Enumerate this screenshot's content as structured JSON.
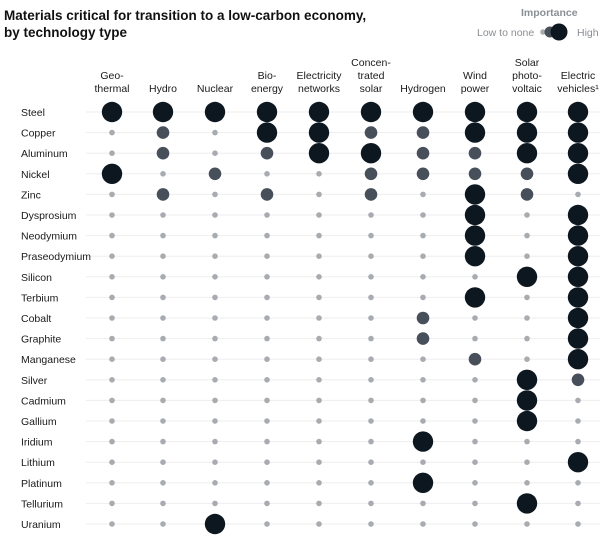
{
  "title_lines": [
    "Materials critical for transition to a low-carbon economy,",
    "by technology type"
  ],
  "legend": {
    "title": "Importance",
    "low_label": "Low to none",
    "high_label": "High"
  },
  "colors": {
    "high": "#0d1720",
    "medium": "#47505a",
    "low": "#a8acb0",
    "gridline": "#eeeeee"
  },
  "chart_data": {
    "type": "dot-matrix",
    "title": "Materials critical for transition to a low-carbon economy, by technology type",
    "scale": {
      "levels": [
        1,
        2,
        3
      ],
      "1": "Low to none",
      "3": "High"
    },
    "columns": [
      {
        "key": "geothermal",
        "lines": [
          "Geo-",
          "thermal"
        ]
      },
      {
        "key": "hydro",
        "lines": [
          "Hydro"
        ]
      },
      {
        "key": "nuclear",
        "lines": [
          "Nuclear"
        ]
      },
      {
        "key": "bioenergy",
        "lines": [
          "Bio-",
          "energy"
        ]
      },
      {
        "key": "electricity_networks",
        "lines": [
          "Electricity",
          "networks"
        ]
      },
      {
        "key": "concentrated_solar",
        "lines": [
          "Concen-",
          "trated",
          "solar"
        ]
      },
      {
        "key": "hydrogen",
        "lines": [
          "Hydrogen"
        ]
      },
      {
        "key": "wind_power",
        "lines": [
          "Wind",
          "power"
        ]
      },
      {
        "key": "solar_photovoltaic",
        "lines": [
          "Solar",
          "photo-",
          "voltaic"
        ]
      },
      {
        "key": "electric_vehicles",
        "lines": [
          "Electric",
          "vehicles¹"
        ]
      }
    ],
    "rows": [
      {
        "material": "Steel",
        "values": [
          3,
          3,
          3,
          3,
          3,
          3,
          3,
          3,
          3,
          3
        ]
      },
      {
        "material": "Copper",
        "values": [
          1,
          2,
          1,
          3,
          3,
          2,
          2,
          3,
          3,
          3
        ]
      },
      {
        "material": "Aluminum",
        "values": [
          1,
          2,
          1,
          2,
          3,
          3,
          2,
          2,
          3,
          3
        ]
      },
      {
        "material": "Nickel",
        "values": [
          3,
          1,
          2,
          1,
          1,
          2,
          2,
          2,
          2,
          3
        ]
      },
      {
        "material": "Zinc",
        "values": [
          1,
          2,
          1,
          2,
          1,
          2,
          1,
          3,
          2,
          1
        ]
      },
      {
        "material": "Dysprosium",
        "values": [
          1,
          1,
          1,
          1,
          1,
          1,
          1,
          3,
          1,
          3
        ]
      },
      {
        "material": "Neodymium",
        "values": [
          1,
          1,
          1,
          1,
          1,
          1,
          1,
          3,
          1,
          3
        ]
      },
      {
        "material": "Praseodymium",
        "values": [
          1,
          1,
          1,
          1,
          1,
          1,
          1,
          3,
          1,
          3
        ]
      },
      {
        "material": "Silicon",
        "values": [
          1,
          1,
          1,
          1,
          1,
          1,
          1,
          1,
          3,
          3
        ]
      },
      {
        "material": "Terbium",
        "values": [
          1,
          1,
          1,
          1,
          1,
          1,
          1,
          3,
          1,
          3
        ]
      },
      {
        "material": "Cobalt",
        "values": [
          1,
          1,
          1,
          1,
          1,
          1,
          2,
          1,
          1,
          3
        ]
      },
      {
        "material": "Graphite",
        "values": [
          1,
          1,
          1,
          1,
          1,
          1,
          2,
          1,
          1,
          3
        ]
      },
      {
        "material": "Manganese",
        "values": [
          1,
          1,
          1,
          1,
          1,
          1,
          1,
          2,
          1,
          3
        ]
      },
      {
        "material": "Silver",
        "values": [
          1,
          1,
          1,
          1,
          1,
          1,
          1,
          1,
          3,
          2
        ]
      },
      {
        "material": "Cadmium",
        "values": [
          1,
          1,
          1,
          1,
          1,
          1,
          1,
          1,
          3,
          1
        ]
      },
      {
        "material": "Gallium",
        "values": [
          1,
          1,
          1,
          1,
          1,
          1,
          1,
          1,
          3,
          1
        ]
      },
      {
        "material": "Iridium",
        "values": [
          1,
          1,
          1,
          1,
          1,
          1,
          3,
          1,
          1,
          1
        ]
      },
      {
        "material": "Lithium",
        "values": [
          1,
          1,
          1,
          1,
          1,
          1,
          1,
          1,
          1,
          3
        ]
      },
      {
        "material": "Platinum",
        "values": [
          1,
          1,
          1,
          1,
          1,
          1,
          3,
          1,
          1,
          1
        ]
      },
      {
        "material": "Tellurium",
        "values": [
          1,
          1,
          1,
          1,
          1,
          1,
          1,
          1,
          3,
          1
        ]
      },
      {
        "material": "Uranium",
        "values": [
          1,
          1,
          3,
          1,
          1,
          1,
          1,
          1,
          1,
          1
        ]
      }
    ]
  }
}
